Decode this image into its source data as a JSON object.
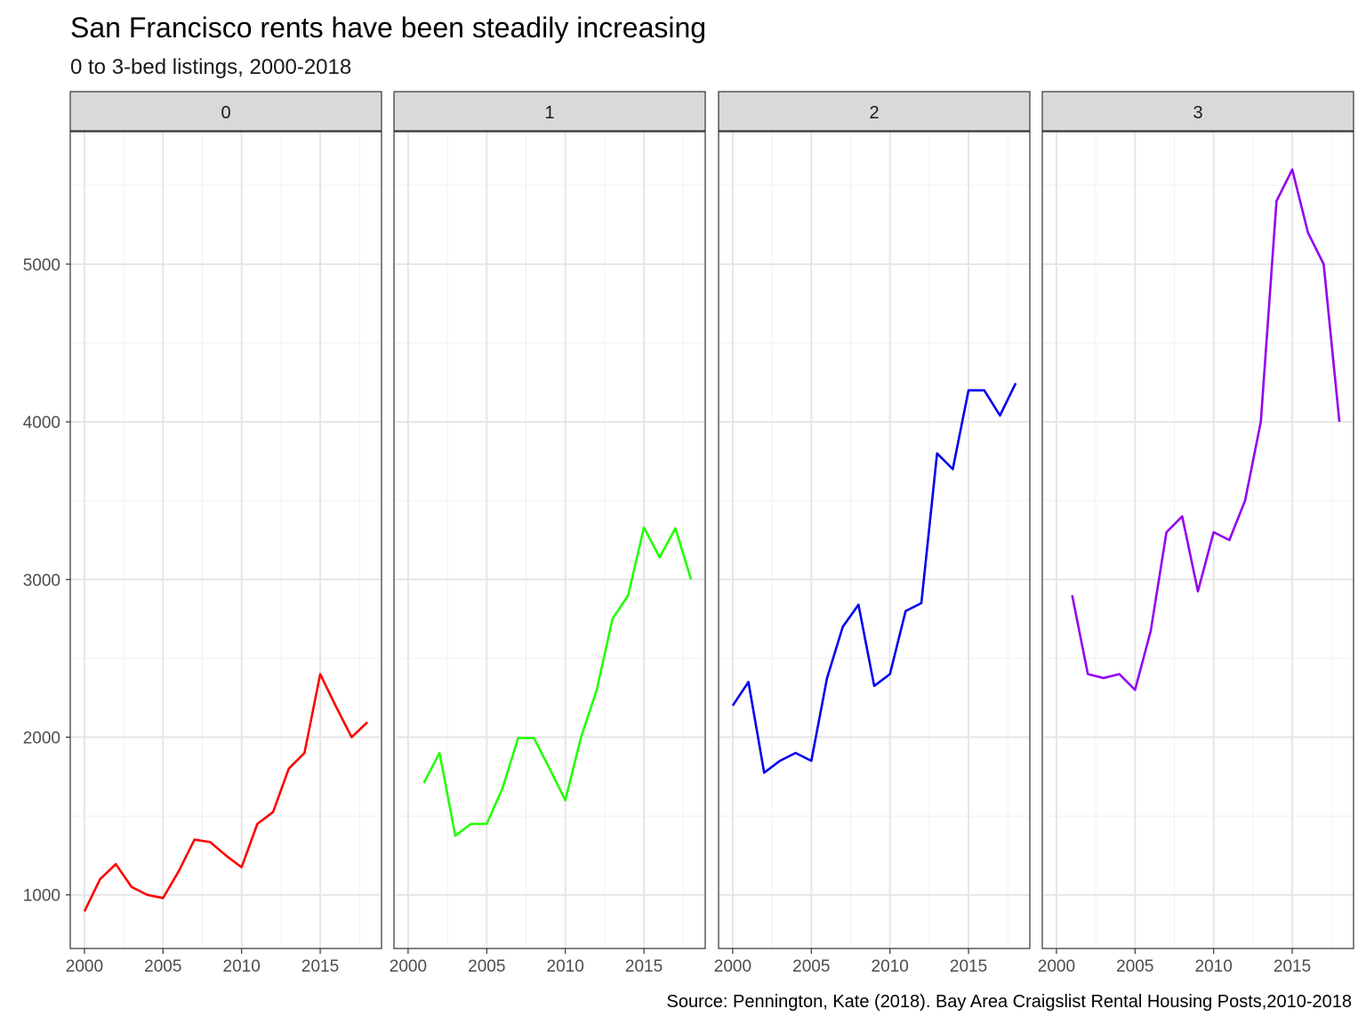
{
  "chart_data": {
    "type": "line",
    "title": "San Francisco rents have been steadily increasing",
    "subtitle": "0 to 3-bed listings,  2000-2018",
    "caption": "Source: Pennington, Kate (2018). Bay Area Craigslist Rental Housing Posts,2010-2018",
    "xlabel": "",
    "ylabel": "",
    "xlim": [
      1999.1,
      2018.9
    ],
    "ylim": [
      660,
      5840
    ],
    "x_ticks": [
      2000,
      2005,
      2010,
      2015
    ],
    "x_tick_labels": [
      "2000",
      "2005",
      "2010",
      "2015"
    ],
    "y_ticks": [
      1000,
      2000,
      3000,
      4000,
      5000
    ],
    "y_tick_labels": [
      "1000",
      "2000",
      "3000",
      "4000",
      "5000"
    ],
    "grid": true,
    "legend": "none",
    "facets": [
      {
        "label": "0",
        "color": "#ff0000",
        "x": [
          2000,
          2001,
          2002,
          2003,
          2004,
          2005,
          2006,
          2007,
          2008,
          2009,
          2010,
          2011,
          2012,
          2013,
          2014,
          2015,
          2016,
          2017,
          2018
        ],
        "y": [
          895,
          1100,
          1195,
          1050,
          1000,
          980,
          1150,
          1350,
          1335,
          1250,
          1175,
          1450,
          1525,
          1800,
          1900,
          2400,
          2195,
          2000,
          2095
        ]
      },
      {
        "label": "1",
        "color": "#22ff00",
        "x": [
          2001,
          2002,
          2003,
          2004,
          2005,
          2006,
          2007,
          2008,
          2009,
          2010,
          2011,
          2012,
          2013,
          2014,
          2015,
          2016,
          2017,
          2018
        ],
        "y": [
          1710,
          1900,
          1375,
          1450,
          1450,
          1675,
          1995,
          1995,
          1800,
          1600,
          2000,
          2300,
          2750,
          2900,
          3330,
          3140,
          3325,
          3000
        ]
      },
      {
        "label": "2",
        "color": "#0000ee",
        "x": [
          2000,
          2001,
          2002,
          2003,
          2004,
          2005,
          2006,
          2007,
          2008,
          2009,
          2010,
          2011,
          2012,
          2013,
          2014,
          2015,
          2016,
          2017,
          2018
        ],
        "y": [
          2200,
          2350,
          1775,
          1850,
          1900,
          1850,
          2375,
          2700,
          2840,
          2325,
          2400,
          2800,
          2850,
          3800,
          3700,
          4200,
          4200,
          4040,
          4245
        ]
      },
      {
        "label": "3",
        "color": "#9400ee",
        "x": [
          2001,
          2002,
          2003,
          2004,
          2005,
          2006,
          2007,
          2008,
          2009,
          2010,
          2011,
          2012,
          2013,
          2014,
          2015,
          2016,
          2017,
          2018
        ],
        "y": [
          2900,
          2400,
          2375,
          2400,
          2300,
          2675,
          3300,
          3400,
          2925,
          3300,
          3250,
          3500,
          4000,
          5400,
          5600,
          5200,
          5000,
          4000
        ]
      }
    ]
  }
}
